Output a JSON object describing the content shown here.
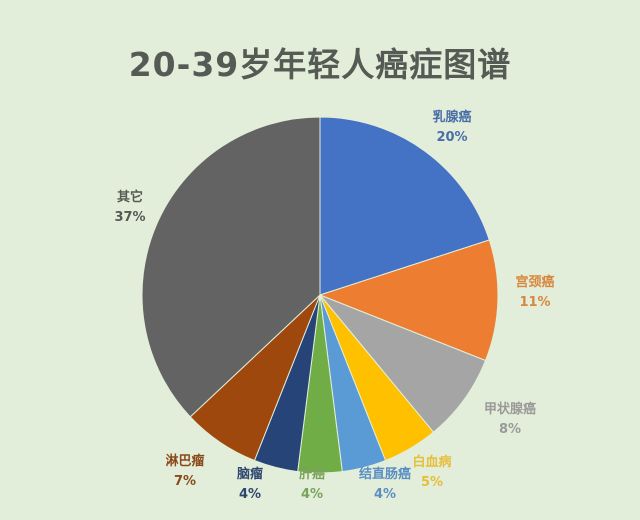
{
  "chart_data": {
    "type": "pie",
    "title": "20-39岁年轻人癌症图谱",
    "categories": [
      "乳腺癌",
      "宫颈癌",
      "甲状腺癌",
      "白血病",
      "结直肠癌",
      "肝癌",
      "脑瘤",
      "淋巴瘤",
      "其它"
    ],
    "values": [
      20,
      11,
      8,
      5,
      4,
      4,
      4,
      7,
      37
    ],
    "labels": [
      "20%",
      "11%",
      "8%",
      "5%",
      "4%",
      "4%",
      "4%",
      "7%",
      "37%"
    ],
    "colors": [
      "#4472c4",
      "#ed7d31",
      "#a5a5a5",
      "#ffc000",
      "#5b9bd5",
      "#70ad47",
      "#264478",
      "#9e480e",
      "#636363"
    ],
    "label_colors": [
      "#4a6fa8",
      "#d8873e",
      "#9a9a9a",
      "#e6be3a",
      "#5b8fc4",
      "#7aa35a",
      "#2e4670",
      "#8a4a1c",
      "#555a55"
    ],
    "start_angle_deg": 0,
    "direction": "clockwise",
    "legend": "none",
    "background": "#e2eed9"
  }
}
